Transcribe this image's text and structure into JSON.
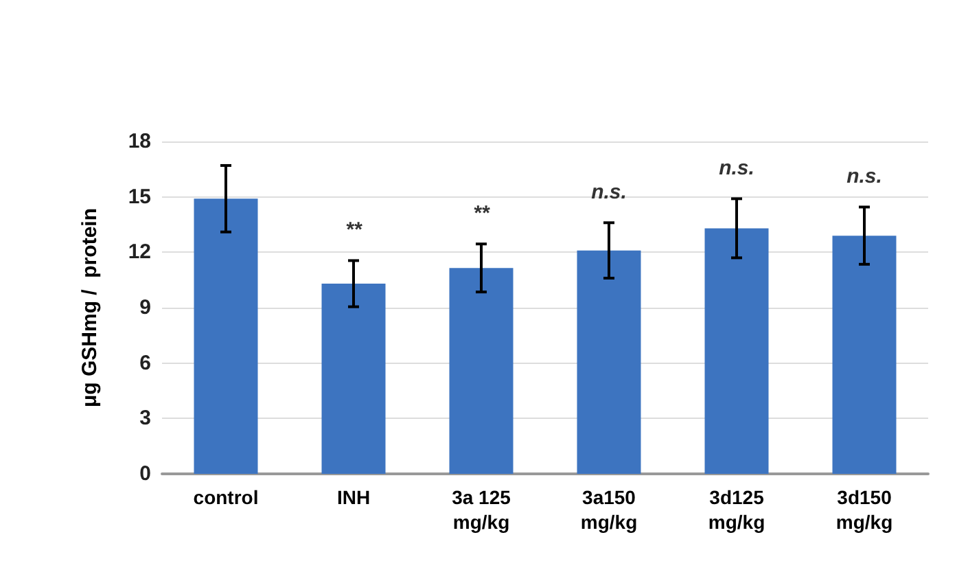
{
  "chart_data": {
    "type": "bar",
    "ylabel": "μg GSHmg /  protein",
    "categories": [
      "control",
      "INH",
      "3a 125\nmg/kg",
      "3a150\nmg/kg",
      "3d125\nmg/kg",
      "3d150\nmg/kg"
    ],
    "values": [
      14.9,
      10.3,
      11.15,
      12.1,
      13.3,
      12.9
    ],
    "errors": [
      1.8,
      1.25,
      1.3,
      1.5,
      1.6,
      1.55
    ],
    "color": "#3d74c0",
    "ylim": [
      0,
      18
    ],
    "yticks": [
      0,
      3,
      6,
      9,
      12,
      15,
      18
    ],
    "grid": "y",
    "annotations": [
      "**",
      "**",
      "n.s.",
      "n.s.",
      "n.s."
    ]
  }
}
